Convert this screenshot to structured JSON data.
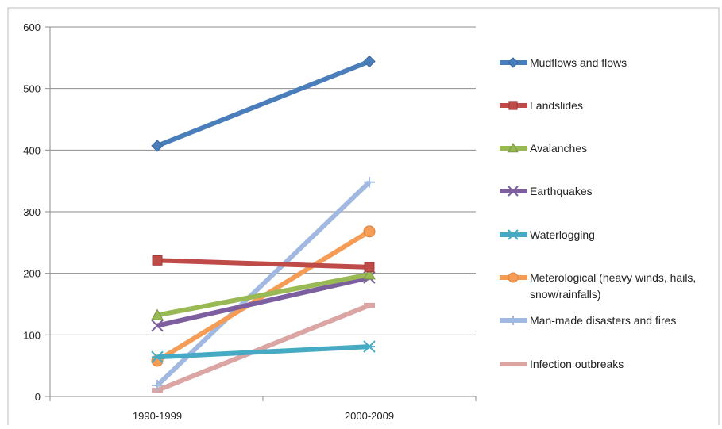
{
  "chart_data": {
    "type": "line",
    "categories": [
      "1990-1999",
      "2000-2009"
    ],
    "ylim": [
      0,
      600
    ],
    "yticks": [
      0,
      100,
      200,
      300,
      400,
      500,
      600
    ],
    "grid": true,
    "legend_position": "right",
    "series": [
      {
        "name": "Mudflows and flows",
        "values": [
          407,
          544
        ],
        "color": "#4a7ebb",
        "marker": "diamond"
      },
      {
        "name": "Landslides",
        "values": [
          221,
          210
        ],
        "color": "#be4b48",
        "marker": "square"
      },
      {
        "name": "Avalanches",
        "values": [
          132,
          198
        ],
        "color": "#98b954",
        "marker": "triangle"
      },
      {
        "name": "Earthquakes",
        "values": [
          115,
          193
        ],
        "color": "#7d5fa0",
        "marker": "x"
      },
      {
        "name": "Waterlogging",
        "values": [
          64,
          81
        ],
        "color": "#46aac4",
        "marker": "asterisk"
      },
      {
        "name": "Meterological (heavy winds, hails, snow/rainfalls)",
        "values": [
          58,
          268
        ],
        "color": "#f59d56",
        "marker": "circle"
      },
      {
        "name": "Man-made disasters and fires",
        "values": [
          18,
          348
        ],
        "color": "#a1b8e1",
        "marker": "plus"
      },
      {
        "name": "Infection outbreaks",
        "values": [
          10,
          148
        ],
        "color": "#dba5a4",
        "marker": "dash"
      }
    ]
  }
}
